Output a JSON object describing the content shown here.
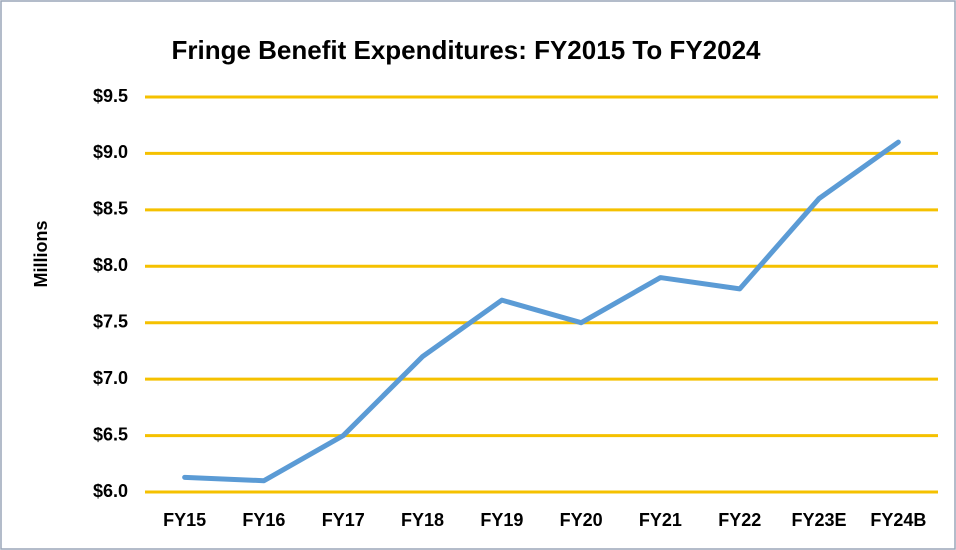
{
  "chart_data": {
    "type": "line",
    "title": "Fringe Benefit Expenditures: FY2015 To FY2024",
    "ylabel": "Millions",
    "categories": [
      "FY15",
      "FY16",
      "FY17",
      "FY18",
      "FY19",
      "FY20",
      "FY21",
      "FY22",
      "FY23E",
      "FY24B"
    ],
    "series": [
      {
        "color": "#5b9bd5",
        "values": [
          6.13,
          6.1,
          6.5,
          7.2,
          7.7,
          7.5,
          7.9,
          7.8,
          8.6,
          9.1
        ]
      }
    ],
    "ylim": [
      6.0,
      9.5
    ],
    "yticks": [
      {
        "value": 6.0,
        "label": "$6.0"
      },
      {
        "value": 6.5,
        "label": "$6.5"
      },
      {
        "value": 7.0,
        "label": "$7.0"
      },
      {
        "value": 7.5,
        "label": "$7.5"
      },
      {
        "value": 8.0,
        "label": "$8.0"
      },
      {
        "value": 8.5,
        "label": "$8.5"
      },
      {
        "value": 9.0,
        "label": "$9.0"
      },
      {
        "value": 9.5,
        "label": "$9.5"
      }
    ],
    "grid": true,
    "grid_color": "#f5c100"
  }
}
